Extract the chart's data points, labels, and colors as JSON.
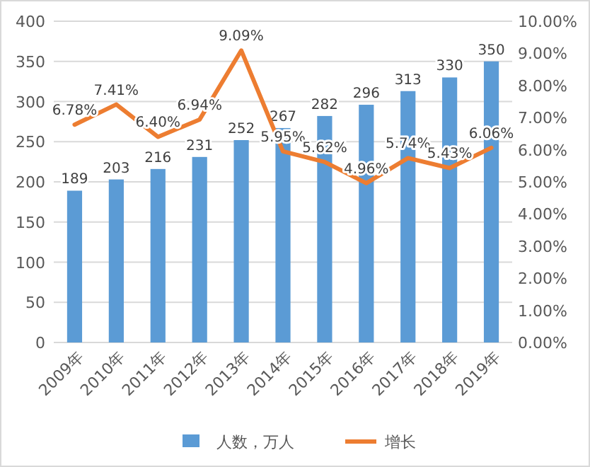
{
  "chart_data": {
    "type": "bar",
    "categories": [
      "2009年",
      "2010年",
      "2011年",
      "2012年",
      "2013年",
      "2014年",
      "2015年",
      "2016年",
      "2017年",
      "2018年",
      "2019年"
    ],
    "series": [
      {
        "name": "人数，万人",
        "color": "#5b9bd5",
        "values": [
          189,
          203,
          216,
          231,
          252,
          267,
          282,
          296,
          313,
          330,
          350
        ],
        "value_labels": [
          "189",
          "203",
          "216",
          "231",
          "252",
          "267",
          "282",
          "296",
          "313",
          "330",
          "350"
        ]
      },
      {
        "name": "增长",
        "type": "line",
        "axis": "y2",
        "color": "#ed7d31",
        "marker": "none",
        "values": [
          6.78,
          7.41,
          6.4,
          6.94,
          9.09,
          5.95,
          5.62,
          4.96,
          5.74,
          5.43,
          6.06
        ],
        "value_labels": [
          "6.78%",
          "7.41%",
          "6.40%",
          "6.94%",
          "9.09%",
          "5.95%",
          "5.62%",
          "4.96%",
          "5.74%",
          "5.43%",
          "6.06%"
        ]
      }
    ],
    "ylim": [
      0,
      400
    ],
    "yticks": [
      0,
      50,
      100,
      150,
      200,
      250,
      300,
      350,
      400
    ],
    "y2lim": [
      0,
      10
    ],
    "y2ticks": [
      {
        "value": 0,
        "label": "0.00%"
      },
      {
        "value": 1,
        "label": "1.00%"
      },
      {
        "value": 2,
        "label": "2.00%"
      },
      {
        "value": 3,
        "label": "3.00%"
      },
      {
        "value": 4,
        "label": "4.00%"
      },
      {
        "value": 5,
        "label": "5.00%"
      },
      {
        "value": 6,
        "label": "6.00%"
      },
      {
        "value": 7,
        "label": "7.00%"
      },
      {
        "value": 8,
        "label": "8.00%"
      },
      {
        "value": 9,
        "label": "9.00%"
      },
      {
        "value": 10,
        "label": "10.00%"
      }
    ],
    "grid": "y",
    "legend": "bottom"
  }
}
